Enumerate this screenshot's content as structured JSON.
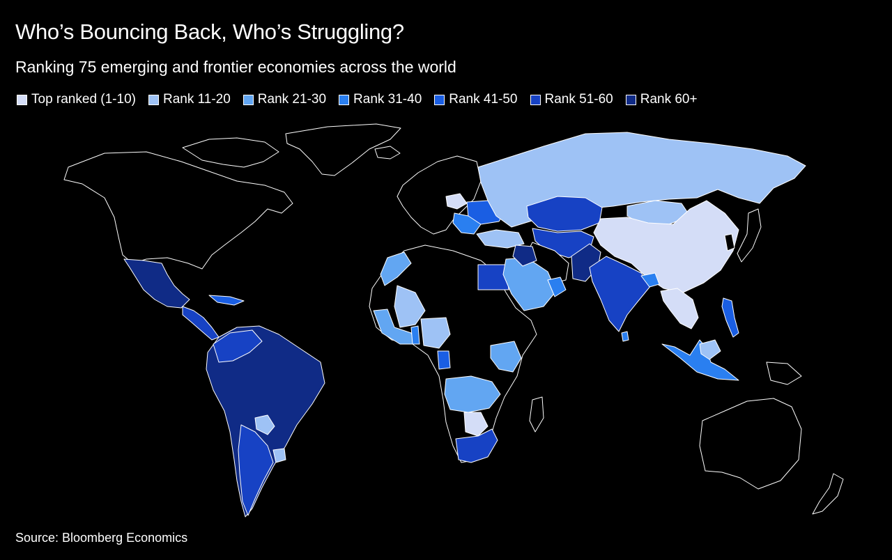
{
  "title": "Who’s Bouncing Back, Who’s Struggling?",
  "subtitle": "Ranking 75 emerging and frontier economies across the world",
  "source": "Source: Bloomberg Economics",
  "legend": [
    {
      "label": "Top ranked (1-10)",
      "color": "#d4ddf7"
    },
    {
      "label": "Rank 11-20",
      "color": "#9ec2f5"
    },
    {
      "label": "Rank 21-30",
      "color": "#62a6f2"
    },
    {
      "label": "Rank 31-40",
      "color": "#2a7ff0"
    },
    {
      "label": "Rank 41-50",
      "color": "#1a5ee3"
    },
    {
      "label": "Rank 51-60",
      "color": "#1742c4"
    },
    {
      "label": "Rank 60+",
      "color": "#102b86"
    }
  ],
  "map": {
    "background": "#000000",
    "border_color": "#ffffff",
    "unranked_fill": "#000000"
  }
}
